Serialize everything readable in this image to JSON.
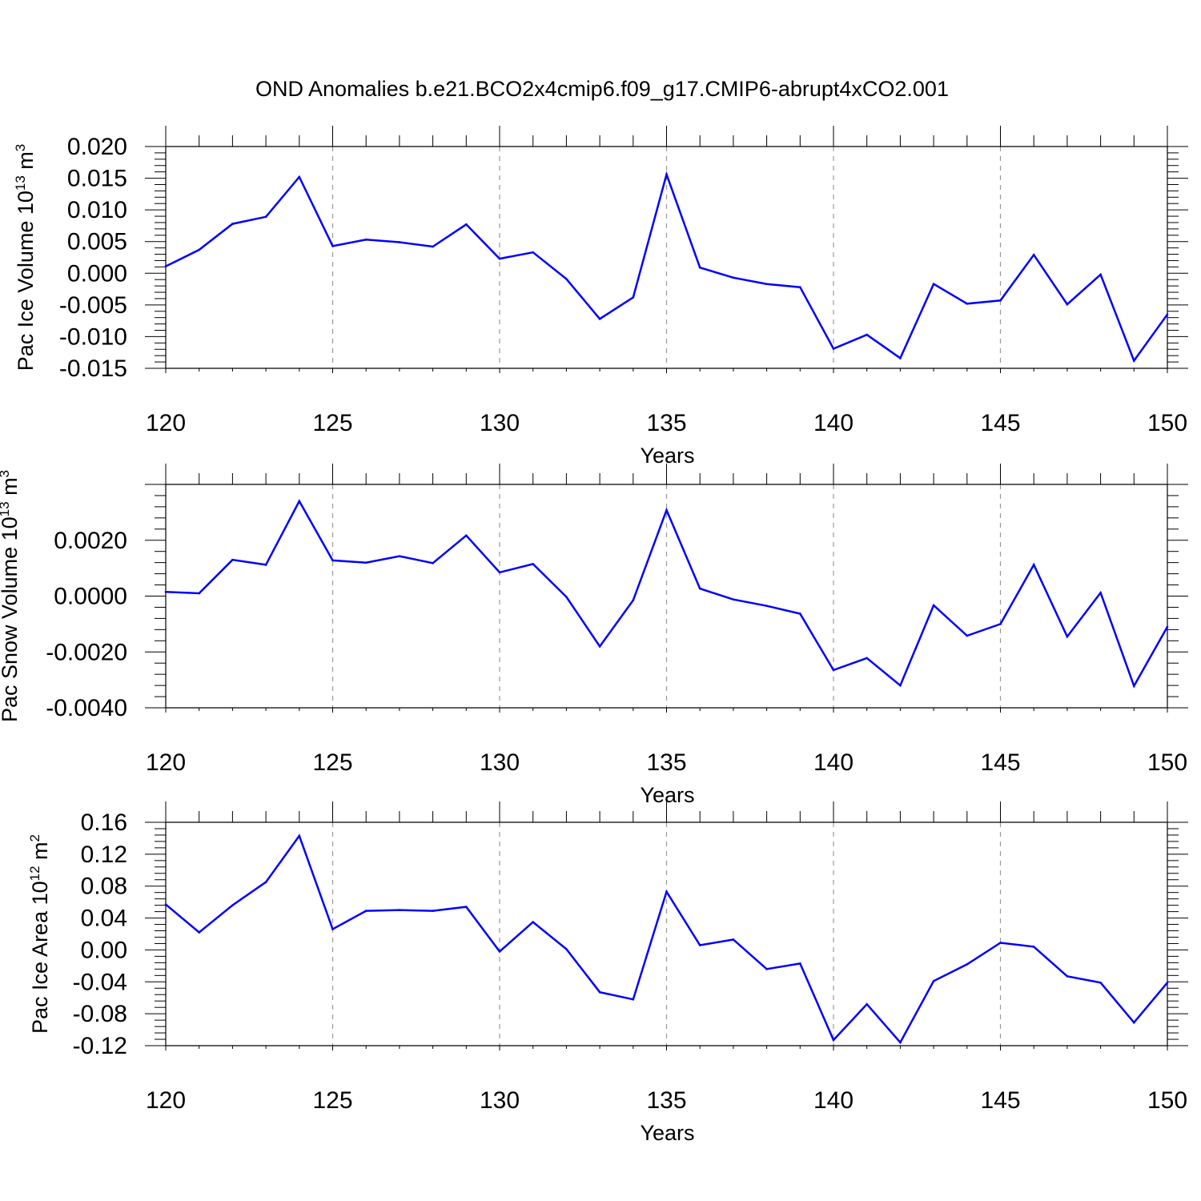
{
  "title": "OND Anomalies b.e21.BCO2x4cmip6.f09_g17.CMIP6-abrupt4xCO2.001",
  "series_color": "#0000ff",
  "chart_data": [
    {
      "type": "line",
      "ylabel_main": "Pac Ice Volume 10",
      "ylabel_sup": "13",
      "ylabel_unit": "m",
      "ylabel_unit_sup": "3",
      "xlabel": "Years",
      "xlim": [
        120,
        150
      ],
      "ylim": [
        -0.015,
        0.02
      ],
      "xticks": [
        120,
        125,
        130,
        135,
        140,
        145,
        150
      ],
      "xtick_labels": [
        "120",
        "125",
        "130",
        "135",
        "140",
        "145",
        "150"
      ],
      "yticks": [
        -0.015,
        -0.01,
        -0.005,
        0.0,
        0.005,
        0.01,
        0.015,
        0.02
      ],
      "ytick_labels": [
        "-0.015",
        "-0.010",
        "-0.005",
        "0.000",
        "0.005",
        "0.010",
        "0.015",
        "0.020"
      ],
      "grid_x": true,
      "x": [
        120,
        121,
        122,
        123,
        124,
        125,
        126,
        127,
        128,
        129,
        130,
        131,
        132,
        133,
        134,
        135,
        136,
        137,
        138,
        139,
        140,
        141,
        142,
        143,
        144,
        145,
        146,
        147,
        148,
        149,
        150
      ],
      "values": [
        0.0011,
        0.0037,
        0.0078,
        0.0089,
        0.0152,
        0.0043,
        0.0053,
        0.0049,
        0.0042,
        0.0077,
        0.0023,
        0.0033,
        -0.0009,
        -0.0072,
        -0.0038,
        0.0156,
        0.0009,
        -0.0007,
        -0.0017,
        -0.0022,
        -0.0119,
        -0.0097,
        -0.0134,
        -0.0017,
        -0.0048,
        -0.0043,
        0.0029,
        -0.0049,
        -0.0002,
        -0.0138,
        -0.0065
      ]
    },
    {
      "type": "line",
      "ylabel_main": "Pac Snow Volume 10",
      "ylabel_sup": "13",
      "ylabel_unit": "m",
      "ylabel_unit_sup": "3",
      "xlabel": "Years",
      "xlim": [
        120,
        150
      ],
      "ylim": [
        -0.004,
        0.004
      ],
      "xticks": [
        120,
        125,
        130,
        135,
        140,
        145,
        150
      ],
      "xtick_labels": [
        "120",
        "125",
        "130",
        "135",
        "140",
        "145",
        "150"
      ],
      "yticks": [
        -0.004,
        -0.002,
        0.0,
        0.002
      ],
      "ytick_labels": [
        "-0.0040",
        "-0.0020",
        "0.0000",
        "0.0020"
      ],
      "grid_x": true,
      "x": [
        120,
        121,
        122,
        123,
        124,
        125,
        126,
        127,
        128,
        129,
        130,
        131,
        132,
        133,
        134,
        135,
        136,
        137,
        138,
        139,
        140,
        141,
        142,
        143,
        144,
        145,
        146,
        147,
        148,
        149,
        150
      ],
      "values": [
        0.00015,
        0.0001,
        0.0013,
        0.00112,
        0.0034,
        0.00128,
        0.0012,
        0.00143,
        0.00118,
        0.00217,
        0.00085,
        0.00115,
        -3e-05,
        -0.0018,
        -0.00015,
        0.00308,
        0.00027,
        -0.00012,
        -0.00035,
        -0.00063,
        -0.00265,
        -0.00222,
        -0.0032,
        -0.00033,
        -0.00142,
        -0.001,
        0.00112,
        -0.00145,
        0.00012,
        -0.00322,
        -0.0011
      ]
    },
    {
      "type": "line",
      "ylabel_main": "Pac Ice Area 10",
      "ylabel_sup": "12",
      "ylabel_unit": "m",
      "ylabel_unit_sup": "2",
      "xlabel": "Years",
      "xlim": [
        120,
        150
      ],
      "ylim": [
        -0.12,
        0.16
      ],
      "xticks": [
        120,
        125,
        130,
        135,
        140,
        145,
        150
      ],
      "xtick_labels": [
        "120",
        "125",
        "130",
        "135",
        "140",
        "145",
        "150"
      ],
      "yticks": [
        -0.12,
        -0.08,
        -0.04,
        0.0,
        0.04,
        0.08,
        0.12,
        0.16
      ],
      "ytick_labels": [
        "-0.12",
        "-0.08",
        "-0.04",
        "0.00",
        "0.04",
        "0.08",
        "0.12",
        "0.16"
      ],
      "grid_x": true,
      "x": [
        120,
        121,
        122,
        123,
        124,
        125,
        126,
        127,
        128,
        129,
        130,
        131,
        132,
        133,
        134,
        135,
        136,
        137,
        138,
        139,
        140,
        141,
        142,
        143,
        144,
        145,
        146,
        147,
        148,
        149,
        150
      ],
      "values": [
        0.057,
        0.022,
        0.056,
        0.085,
        0.143,
        0.026,
        0.049,
        0.05,
        0.049,
        0.054,
        -0.002,
        0.035,
        0.001,
        -0.053,
        -0.062,
        0.073,
        0.006,
        0.013,
        -0.024,
        -0.017,
        -0.113,
        -0.068,
        -0.116,
        -0.039,
        -0.018,
        0.009,
        0.004,
        -0.033,
        -0.041,
        -0.091,
        -0.041
      ]
    }
  ]
}
